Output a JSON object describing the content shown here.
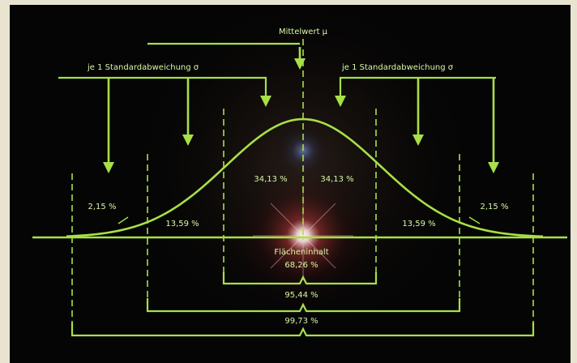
{
  "title": "Mittelwert μ",
  "left_label": "je 1 Standardabweichung σ",
  "right_label": "je 1 Standardabweichung σ",
  "percentages": {
    "center_left": "34,13 %",
    "center_right": "34,13 %",
    "mid_left": "13,59 %",
    "mid_right": "13,59 %",
    "tail_left": "2,15 %",
    "tail_right": "2,15 %"
  },
  "area_label": "Flächeninhalt",
  "ranges": {
    "one_sigma": "68,26 %",
    "two_sigma": "95,44 %",
    "three_sigma": "99,73 %"
  },
  "colors": {
    "line": "#a7e048",
    "text": "#d8f7a6",
    "background": "#050505",
    "frame": "#e9e4cf"
  }
}
